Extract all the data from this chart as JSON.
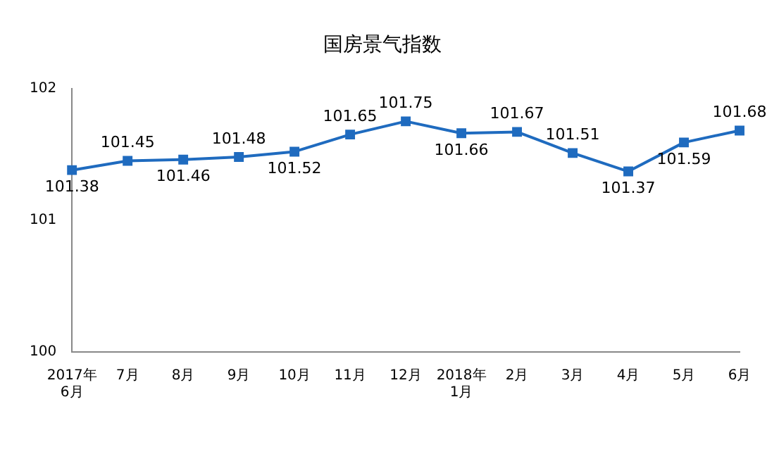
{
  "chart_data": {
    "type": "line",
    "title": "国房景气指数",
    "categories": [
      "2017年\n6月",
      "7月",
      "8月",
      "9月",
      "10月",
      "11月",
      "12月",
      "2018年\n1月",
      "2月",
      "3月",
      "4月",
      "5月",
      "6月"
    ],
    "series": [
      {
        "color": "#1f6bbf",
        "values": [
          101.38,
          101.45,
          101.46,
          101.48,
          101.52,
          101.65,
          101.75,
          101.66,
          101.67,
          101.51,
          101.37,
          101.59,
          101.68
        ]
      }
    ],
    "ylim": [
      100,
      102
    ],
    "yticks": [
      100,
      101,
      102
    ],
    "grid": false,
    "legend": false,
    "marker": "square",
    "line_style": "solid",
    "data_labels": true
  }
}
